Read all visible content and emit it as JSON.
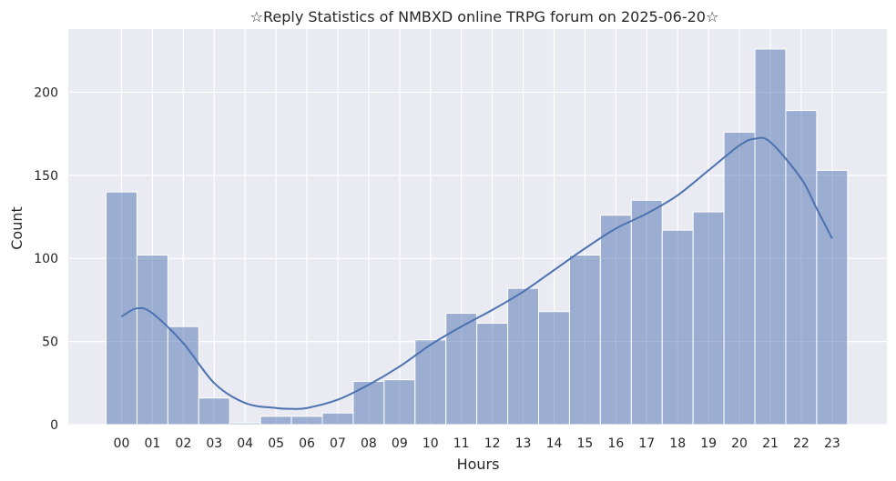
{
  "chart_data": {
    "type": "bar",
    "title": "☆Reply Statistics of NMBXD online TRPG forum on 2025-06-20☆",
    "xlabel": "Hours",
    "ylabel": "Count",
    "categories": [
      "00",
      "01",
      "02",
      "03",
      "04",
      "05",
      "06",
      "07",
      "08",
      "09",
      "10",
      "11",
      "12",
      "13",
      "14",
      "15",
      "16",
      "17",
      "18",
      "19",
      "20",
      "21",
      "22",
      "23"
    ],
    "values": [
      140,
      102,
      59,
      16,
      1,
      5,
      5,
      7,
      26,
      27,
      51,
      67,
      61,
      82,
      68,
      102,
      126,
      135,
      117,
      128,
      176,
      226,
      189,
      153
    ],
    "kde_curve": {
      "x": [
        0,
        0.5,
        1,
        2,
        3,
        4,
        5,
        5.5,
        6,
        7,
        8,
        9,
        10,
        11,
        12,
        13,
        14,
        15,
        16,
        17,
        18,
        19,
        20,
        20.5,
        21,
        22,
        22.5,
        23
      ],
      "y": [
        65,
        70,
        67,
        49,
        25,
        13,
        10,
        9.5,
        10,
        15,
        24,
        35,
        48,
        59,
        69,
        80,
        93,
        106,
        118,
        127,
        138,
        153,
        168,
        172,
        170,
        148,
        130,
        112
      ]
    },
    "ylim": [
      0,
      238
    ],
    "yticks": [
      0,
      50,
      100,
      150,
      200
    ],
    "grid": true,
    "colors": {
      "background": "#eaeaf2",
      "bar_fill": "#4c72b0",
      "bar_opacity": 0.5,
      "line": "#4c72b0",
      "grid": "#ffffff"
    }
  }
}
